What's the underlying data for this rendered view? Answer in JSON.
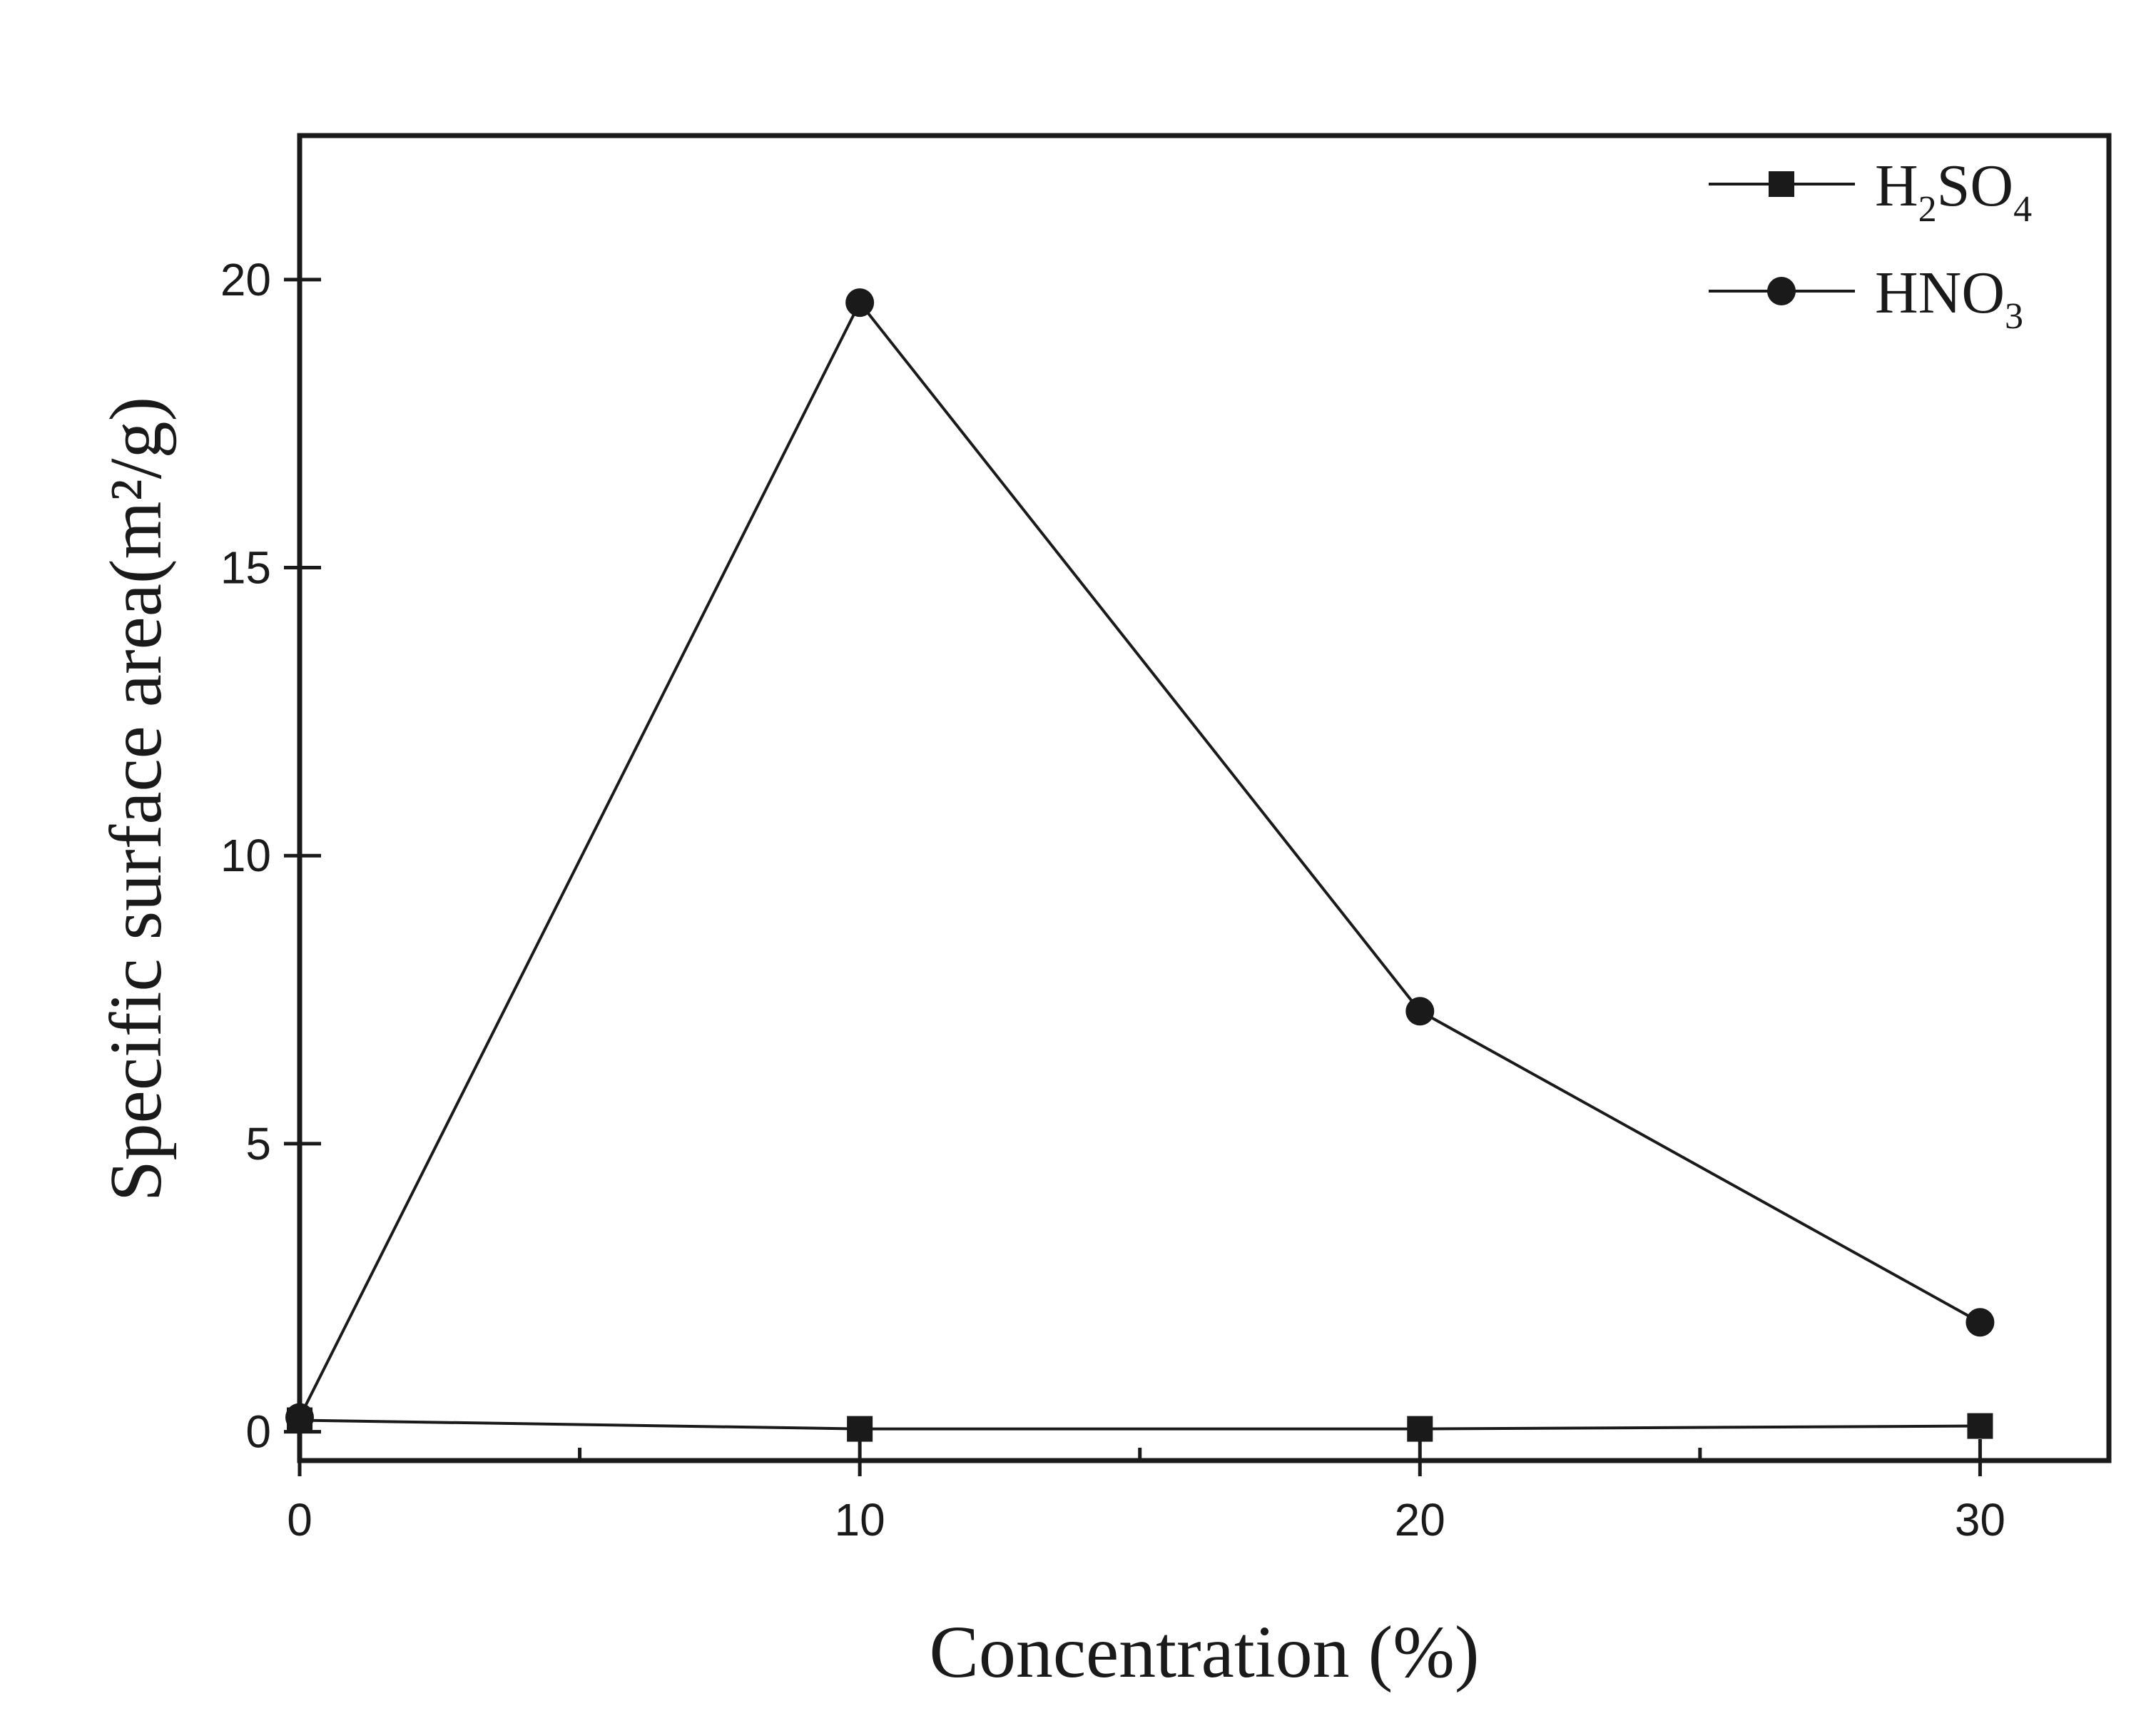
{
  "chart_data": {
    "type": "line",
    "title": "",
    "xlabel": "Concentration (%)",
    "ylabel": "Specific surface area(m²/g)",
    "x": [
      0,
      10,
      20,
      30
    ],
    "xlim": [
      0,
      32.3
    ],
    "ylim": [
      -0.5,
      22.5
    ],
    "xticks": [
      0,
      10,
      20,
      30
    ],
    "xtick_labels": [
      "0",
      "10",
      "20",
      "30"
    ],
    "xminor": [
      5,
      15,
      25
    ],
    "yticks": [
      0,
      5,
      10,
      15,
      20
    ],
    "ytick_labels": [
      "0",
      "5",
      "10",
      "15",
      "20"
    ],
    "grid": false,
    "legend": "top-right",
    "series": [
      {
        "name": "H2SO4",
        "legend_base1": "H",
        "legend_sub1": "2",
        "legend_base2": "SO",
        "legend_sub2": "4",
        "marker": "square",
        "color": "#1a1a1a",
        "values": [
          0.2,
          0.05,
          0.05,
          0.1
        ]
      },
      {
        "name": "HNO3",
        "legend_base1": "HNO",
        "legend_sub1": "3",
        "legend_base2": "",
        "legend_sub2": "",
        "marker": "circle",
        "color": "#1a1a1a",
        "values": [
          0.25,
          19.6,
          7.3,
          1.9
        ]
      }
    ]
  }
}
